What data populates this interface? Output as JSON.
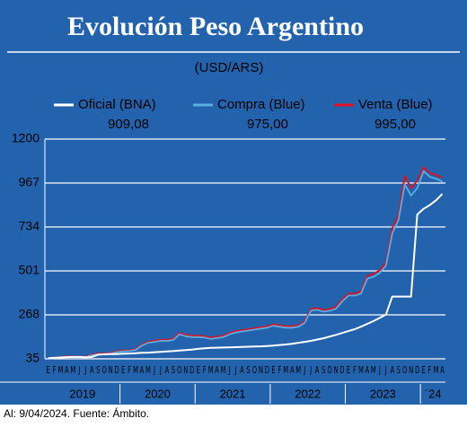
{
  "chart_data": {
    "type": "line",
    "title": "Evolución Peso Argentino",
    "subtitle": "(USD/ARS)",
    "source": "Al: 9/04/2024. Fuente: Ámbito.",
    "categories": [
      "E",
      "F",
      "M",
      "A",
      "M",
      "J",
      "J",
      "A",
      "S",
      "O",
      "N",
      "D",
      "E",
      "F",
      "M",
      "A",
      "M",
      "J",
      "J",
      "A",
      "S",
      "O",
      "N",
      "D",
      "E",
      "F",
      "M",
      "A",
      "M",
      "J",
      "J",
      "A",
      "S",
      "O",
      "N",
      "D",
      "E",
      "F",
      "M",
      "A",
      "M",
      "J",
      "J",
      "A",
      "S",
      "O",
      "N",
      "D",
      "E",
      "F",
      "M",
      "A",
      "M",
      "J",
      "J",
      "A",
      "S",
      "O",
      "N",
      "D",
      "E",
      "F",
      "M",
      "A"
    ],
    "year_labels": [
      "2019",
      "2020",
      "2021",
      "2022",
      "2023",
      "´24"
    ],
    "ylim": [
      35,
      1200
    ],
    "yticks": [
      35,
      268,
      501,
      734,
      967,
      1200
    ],
    "grid": true,
    "series": [
      {
        "name": "Oficial (BNA)",
        "latest_label": "909,08",
        "color": "#ffffff",
        "values": [
          38,
          40,
          42,
          44,
          45,
          45,
          43,
          45,
          57,
          59,
          60,
          60,
          62,
          63,
          65,
          67,
          68,
          70,
          72,
          74,
          76,
          79,
          81,
          84,
          88,
          91,
          93,
          94,
          95,
          96,
          97,
          98,
          99,
          100,
          101,
          103,
          105,
          108,
          111,
          115,
          120,
          125,
          130,
          137,
          144,
          153,
          162,
          172,
          182,
          192,
          205,
          220,
          235,
          252,
          270,
          365,
          365,
          365,
          365,
          800,
          830,
          850,
          875,
          909
        ]
      },
      {
        "name": "Compra (Blue)",
        "latest_label": "975,00",
        "color": "#5aaee0",
        "values": [
          37,
          39,
          42,
          45,
          44,
          43,
          43,
          55,
          58,
          60,
          62,
          70,
          75,
          76,
          82,
          105,
          120,
          125,
          130,
          130,
          135,
          165,
          155,
          150,
          150,
          148,
          140,
          145,
          150,
          165,
          175,
          180,
          185,
          190,
          195,
          200,
          210,
          205,
          200,
          200,
          205,
          225,
          290,
          295,
          285,
          290,
          300,
          340,
          370,
          370,
          380,
          460,
          470,
          490,
          530,
          700,
          770,
          960,
          900,
          940,
          1030,
          1000,
          990,
          975
        ]
      },
      {
        "name": "Venta (Blue)",
        "latest_label": "995,00",
        "color": "#e0101e",
        "values": [
          39,
          41,
          44,
          48,
          47,
          46,
          46,
          59,
          62,
          64,
          66,
          74,
          79,
          80,
          87,
          110,
          126,
          131,
          136,
          136,
          142,
          172,
          162,
          157,
          157,
          155,
          147,
          152,
          157,
          172,
          182,
          187,
          192,
          197,
          202,
          207,
          218,
          213,
          208,
          208,
          213,
          234,
          299,
          304,
          294,
          299,
          310,
          350,
          380,
          380,
          392,
          475,
          485,
          505,
          545,
          730,
          795,
          1005,
          940,
          980,
          1050,
          1020,
          1010,
          995
        ]
      }
    ]
  }
}
